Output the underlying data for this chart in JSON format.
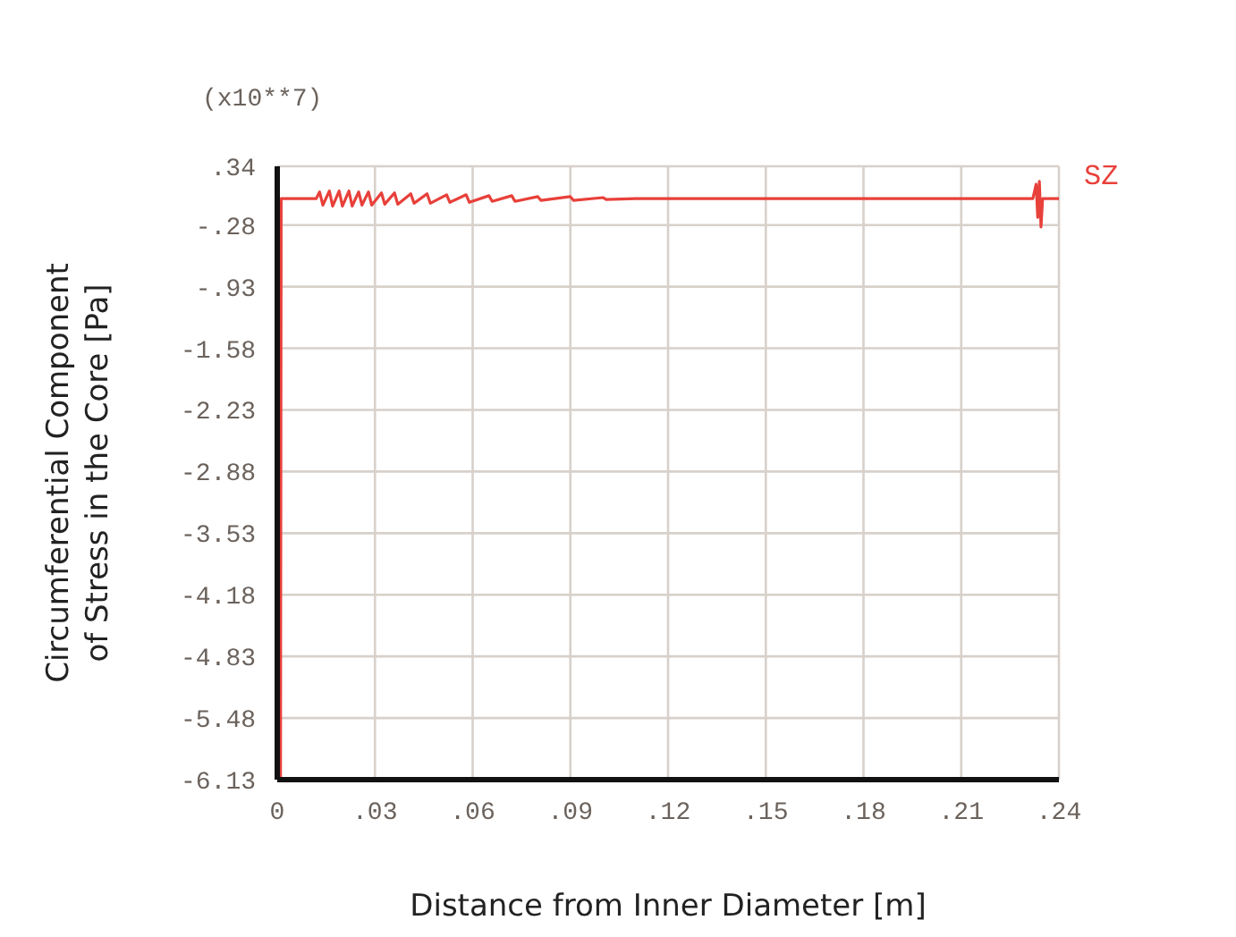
{
  "chart_data": {
    "type": "line",
    "xlabel": "Distance from Inner Diameter [m]",
    "ylabel": "Circumferential Component of Stress in the Core [Pa]",
    "annotations": [
      "(x10**7)"
    ],
    "xlim": [
      0,
      0.24
    ],
    "ylim": [
      -6.13,
      0.34
    ],
    "xticks": [
      {
        "value": 0,
        "label": "0"
      },
      {
        "value": 0.03,
        "label": ".03"
      },
      {
        "value": 0.06,
        "label": ".06"
      },
      {
        "value": 0.09,
        "label": ".09"
      },
      {
        "value": 0.12,
        "label": ".12"
      },
      {
        "value": 0.15,
        "label": ".15"
      },
      {
        "value": 0.18,
        "label": ".18"
      },
      {
        "value": 0.21,
        "label": ".21"
      },
      {
        "value": 0.24,
        "label": ".24"
      }
    ],
    "yticks": [
      {
        "value": 0.34,
        "label": ".34"
      },
      {
        "value": -0.28,
        "label": "-.28"
      },
      {
        "value": -0.93,
        "label": "-.93"
      },
      -1.58,
      -2.23,
      -2.88,
      -3.53,
      -4.18,
      -4.83,
      -5.48,
      -6.13
    ],
    "grid": true,
    "marker": "none",
    "line_style": "solid",
    "series": [
      {
        "name": "SZ",
        "color": "#e8403a",
        "x": [
          0.001,
          0.0012,
          0.012,
          0.013,
          0.014,
          0.016,
          0.017,
          0.019,
          0.02,
          0.022,
          0.023,
          0.025,
          0.026,
          0.028,
          0.029,
          0.032,
          0.033,
          0.036,
          0.037,
          0.041,
          0.042,
          0.046,
          0.047,
          0.052,
          0.053,
          0.058,
          0.059,
          0.065,
          0.066,
          0.072,
          0.073,
          0.08,
          0.081,
          0.09,
          0.091,
          0.1,
          0.101,
          0.11,
          0.232,
          0.233,
          0.2335,
          0.234,
          0.2345,
          0.235,
          0.24
        ],
        "values": [
          -6.13,
          0,
          0,
          0.07,
          -0.07,
          0.08,
          -0.08,
          0.08,
          -0.08,
          0.08,
          -0.08,
          0.07,
          -0.07,
          0.07,
          -0.07,
          0.06,
          -0.06,
          0.06,
          -0.06,
          0.05,
          -0.05,
          0.05,
          -0.05,
          0.04,
          -0.04,
          0.04,
          -0.04,
          0.03,
          -0.03,
          0.03,
          -0.03,
          0.02,
          -0.02,
          0.02,
          -0.02,
          0.01,
          -0.01,
          0,
          0,
          0.15,
          -0.2,
          0.18,
          -0.3,
          0,
          0
        ]
      }
    ]
  }
}
